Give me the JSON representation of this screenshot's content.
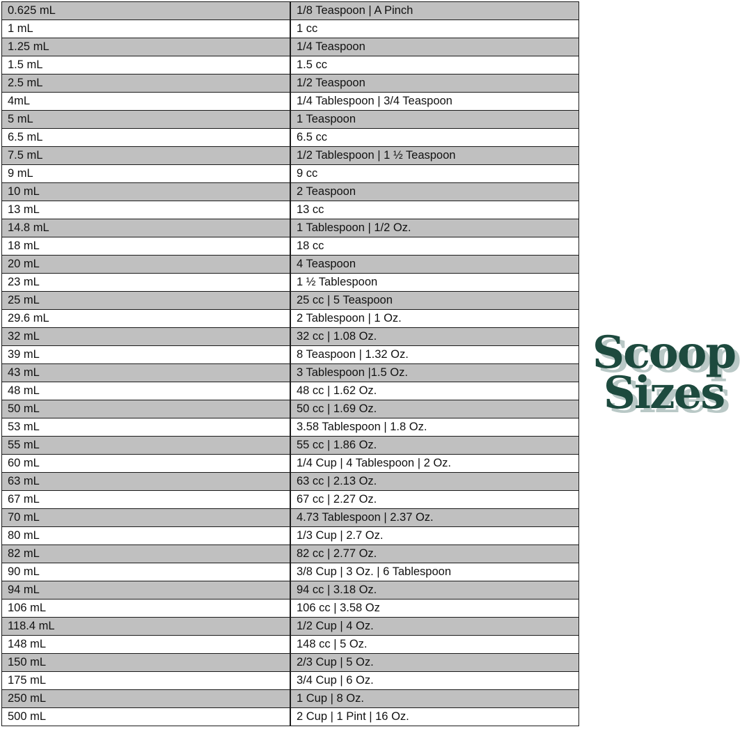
{
  "title": "Scoop Sizes",
  "title_lines": [
    "Scoop",
    "Sizes"
  ],
  "colors": {
    "row_shade": "#c0c0c0",
    "logo": "#1d4a3e",
    "logo_shadow": "#b9c8c6"
  },
  "rows": [
    [
      "0.625 mL",
      "1/8 Teaspoon | A Pinch"
    ],
    [
      "1 mL",
      "1 cc"
    ],
    [
      "1.25 mL",
      "1/4 Teaspoon"
    ],
    [
      "1.5 mL",
      "1.5 cc"
    ],
    [
      "2.5 mL",
      "1/2 Teaspoon"
    ],
    [
      "4mL",
      "1/4 Tablespoon | 3/4 Teaspoon"
    ],
    [
      "5 mL",
      "1 Teaspoon"
    ],
    [
      "6.5 mL",
      "6.5 cc"
    ],
    [
      "7.5 mL",
      "1/2 Tablespoon | 1 ½ Teaspoon"
    ],
    [
      "9 mL",
      "9 cc"
    ],
    [
      "10 mL",
      "2 Teaspoon"
    ],
    [
      "13 mL",
      "13 cc"
    ],
    [
      "14.8 mL",
      "1 Tablespoon | 1/2 Oz."
    ],
    [
      "18 mL",
      "18 cc"
    ],
    [
      "20 mL",
      "4 Teaspoon"
    ],
    [
      "23 mL",
      "1 ½ Tablespoon"
    ],
    [
      "25 mL",
      "25 cc | 5 Teaspoon"
    ],
    [
      "29.6 mL",
      "2 Tablespoon | 1 Oz."
    ],
    [
      "32 mL",
      "32 cc | 1.08 Oz."
    ],
    [
      "39 mL",
      "8 Teaspoon | 1.32 Oz."
    ],
    [
      "43 mL",
      "3 Tablespoon |1.5 Oz."
    ],
    [
      "48 mL",
      "48 cc | 1.62 Oz."
    ],
    [
      "50 mL",
      "50 cc | 1.69 Oz."
    ],
    [
      "53 mL",
      "3.58 Tablespoon | 1.8 Oz."
    ],
    [
      "55 mL",
      "55 cc | 1.86 Oz."
    ],
    [
      "60 mL",
      "1/4 Cup | 4 Tablespoon | 2 Oz."
    ],
    [
      "63 mL",
      "63 cc | 2.13 Oz."
    ],
    [
      "67 mL",
      "67 cc | 2.27 Oz."
    ],
    [
      "70 mL",
      "4.73 Tablespoon | 2.37 Oz."
    ],
    [
      "80 mL",
      "1/3 Cup | 2.7 Oz."
    ],
    [
      "82 mL",
      "82 cc | 2.77 Oz."
    ],
    [
      "90 mL",
      "3/8 Cup | 3 Oz. | 6 Tablespoon"
    ],
    [
      "94 mL",
      "94 cc | 3.18 Oz."
    ],
    [
      "106 mL",
      "106 cc | 3.58 Oz"
    ],
    [
      "118.4 mL",
      "1/2 Cup | 4 Oz."
    ],
    [
      "148 mL",
      "148 cc | 5 Oz."
    ],
    [
      "150 mL",
      "2/3 Cup | 5 Oz."
    ],
    [
      "175 mL",
      "3/4 Cup | 6 Oz."
    ],
    [
      "250 mL",
      "1 Cup | 8 Oz."
    ],
    [
      "500 mL",
      "2 Cup | 1 Pint | 16 Oz."
    ]
  ]
}
